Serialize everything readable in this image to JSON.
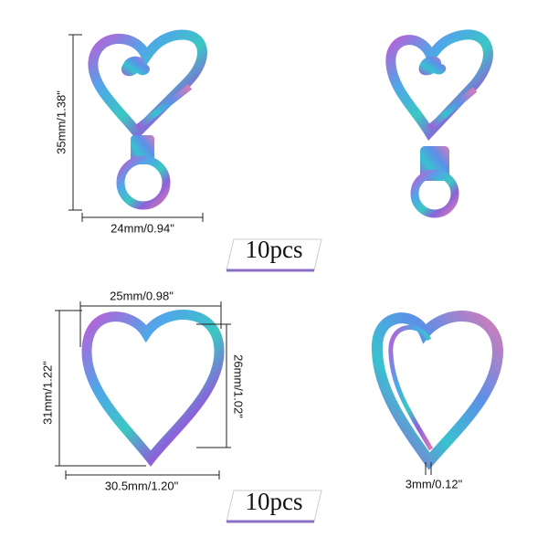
{
  "clasps": {
    "height": "35mm/1.38\"",
    "width": "24mm/0.94\"",
    "quantity": "10pcs"
  },
  "rings": {
    "inner_width": "25mm/0.98\"",
    "inner_height": "26mm/1.02\"",
    "outer_height": "31mm/1.22\"",
    "outer_width": "30.5mm/1.20\"",
    "thickness": "3mm/0.12\"",
    "quantity": "10pcs"
  }
}
